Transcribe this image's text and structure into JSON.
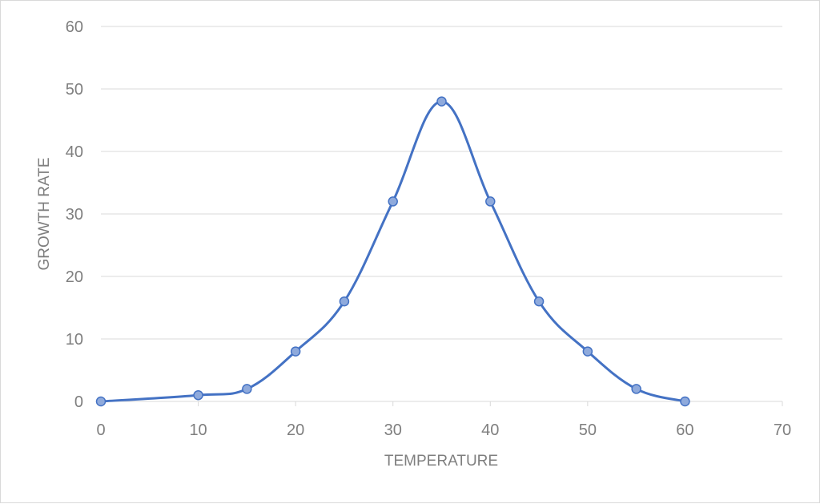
{
  "chart_data": {
    "type": "scatter",
    "title": "",
    "xlabel": "TEMPERATURE",
    "ylabel": "GROWTH RATE",
    "xlim": [
      0,
      70
    ],
    "ylim": [
      0,
      60
    ],
    "xticks": [
      0,
      10,
      20,
      30,
      40,
      50,
      60,
      70
    ],
    "yticks": [
      0,
      10,
      20,
      30,
      40,
      50,
      60
    ],
    "grid": "horizontal",
    "smooth_line": true,
    "markers": true,
    "series": [
      {
        "color": "#4472c4",
        "marker_fill": "#8faadc",
        "x": [
          0,
          10,
          15,
          20,
          25,
          30,
          35,
          40,
          45,
          50,
          55,
          60
        ],
        "y": [
          0,
          1,
          2,
          8,
          16,
          32,
          48,
          32,
          16,
          8,
          2,
          0
        ]
      }
    ]
  }
}
